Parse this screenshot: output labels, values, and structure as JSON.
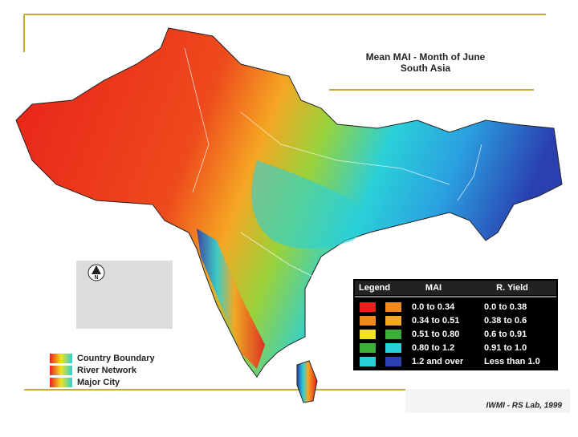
{
  "title": "Mean MAI - Month of June",
  "subtitle": "South Asia",
  "legend": {
    "heading": "Legend",
    "mai_heading": "MAI",
    "yield_heading": "R. Yield",
    "rows": [
      {
        "mai": "0.0 to 0.34",
        "mai_color": "#e8201a",
        "yield": "0.0 to 0.38",
        "yield_color": "#f08a1c"
      },
      {
        "mai": "0.34 to 0.51",
        "mai_color": "#f08a1c",
        "yield": "0.38 to 0.6",
        "yield_color": "#f5a623"
      },
      {
        "mai": "0.51 to 0.80",
        "mai_color": "#f2e41c",
        "yield": "0.6 to 0.91",
        "yield_color": "#3cae3a"
      },
      {
        "mai": "0.80 to 1.2",
        "mai_color": "#3cae3a",
        "yield": "0.91 to 1.0",
        "yield_color": "#2ad0d8"
      },
      {
        "mai": "1.2 and over",
        "mai_color": "#2ad0d8",
        "yield": "Less than 1.0",
        "yield_color": "#2a3fb0"
      }
    ]
  },
  "key": [
    "Country Boundary",
    "River Network",
    "Major City"
  ],
  "compass": "N",
  "credit": "IWMI - RS Lab, 1999"
}
